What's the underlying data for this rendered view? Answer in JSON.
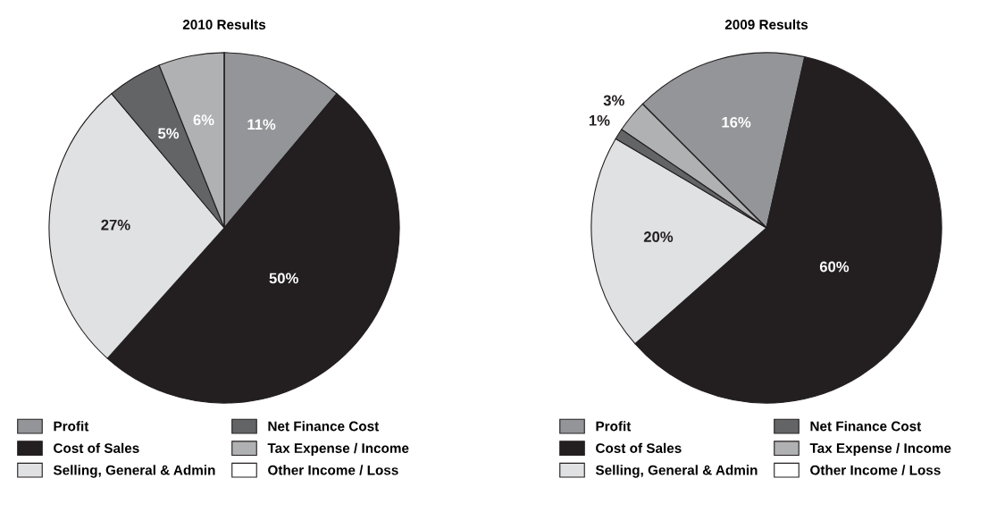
{
  "chart_data": [
    {
      "type": "pie",
      "title": "2010 Results",
      "categories": [
        "Profit",
        "Cost of Sales",
        "Selling, General & Admin",
        "Net Finance Cost",
        "Tax Expense / Income",
        "Other Income / Loss"
      ],
      "values": [
        11,
        50,
        27,
        5,
        6,
        0
      ],
      "value_labels": [
        "11%",
        "50%",
        "27%",
        "5%",
        "6%",
        null
      ],
      "colors": [
        "#939598",
        "#231f20",
        "#e0e1e3",
        "#636466",
        "#b0b1b3",
        "#ffffff"
      ],
      "legend": "bottom"
    },
    {
      "type": "pie",
      "title": "2009 Results",
      "categories": [
        "Profit",
        "Cost of Sales",
        "Selling, General & Admin",
        "Net Finance Cost",
        "Tax Expense / Income",
        "Other Income / Loss"
      ],
      "values": [
        16,
        60,
        20,
        1,
        3,
        0
      ],
      "value_labels": [
        "16%",
        "60%",
        "20%",
        "1%",
        "3%",
        null
      ],
      "colors": [
        "#939598",
        "#231f20",
        "#e0e1e3",
        "#636466",
        "#b0b1b3",
        "#ffffff"
      ],
      "legend": "bottom"
    }
  ]
}
